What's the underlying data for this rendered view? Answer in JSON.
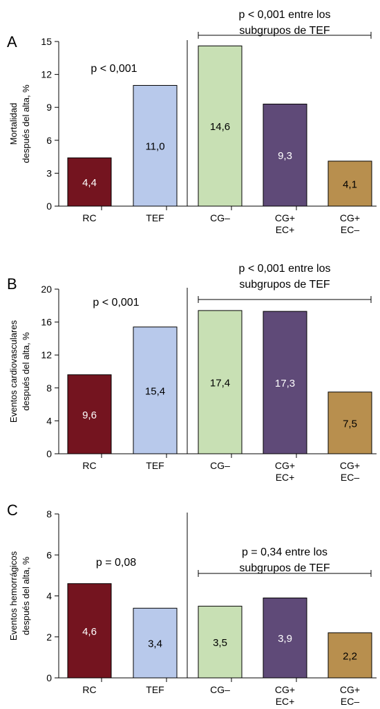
{
  "colors": {
    "RC": "#74141f",
    "TEF": "#b8c9eb",
    "CG–": "#c8e0b4",
    "CG+ EC+": "#5f4a78",
    "CG+ EC–": "#b88f4e",
    "axis": "#000000"
  },
  "chart_data": [
    {
      "type": "bar",
      "panel_label": "A",
      "categories": [
        "RC",
        "TEF",
        "CG–",
        "CG+ EC+",
        "CG+ EC–"
      ],
      "category_lines": [
        [
          "RC"
        ],
        [
          "TEF"
        ],
        [
          "CG–"
        ],
        [
          "CG+",
          "EC+"
        ],
        [
          "CG+",
          "EC–"
        ]
      ],
      "values": [
        4.4,
        11.0,
        14.6,
        9.3,
        4.1
      ],
      "value_labels": [
        "4,4",
        "11,0",
        "14,6",
        "9,3",
        "4,1"
      ],
      "label_colors": [
        "#ffffff",
        "#000000",
        "#000000",
        "#ffffff",
        "#000000"
      ],
      "ylabel_lines": [
        "Mortalidad",
        "después del alta, %"
      ],
      "ylim": [
        0,
        15
      ],
      "yticks": [
        0,
        3,
        6,
        9,
        12,
        15
      ],
      "ytick_labels": [
        "0",
        "3",
        "6",
        "9",
        "12",
        "15"
      ],
      "annotation_left": "p < 0,001",
      "annotation_right_lines": [
        "p < 0,001 entre los",
        "subgrupos de TEF"
      ],
      "grid": false
    },
    {
      "type": "bar",
      "panel_label": "B",
      "categories": [
        "RC",
        "TEF",
        "CG–",
        "CG+ EC+",
        "CG+ EC–"
      ],
      "category_lines": [
        [
          "RC"
        ],
        [
          "TEF"
        ],
        [
          "CG–"
        ],
        [
          "CG+",
          "EC+"
        ],
        [
          "CG+",
          "EC–"
        ]
      ],
      "values": [
        9.6,
        15.4,
        17.4,
        17.3,
        7.5
      ],
      "value_labels": [
        "9,6",
        "15,4",
        "17,4",
        "17,3",
        "7,5"
      ],
      "label_colors": [
        "#ffffff",
        "#000000",
        "#000000",
        "#ffffff",
        "#000000"
      ],
      "ylabel_lines": [
        "Eventos cardiovasculares",
        "después del alta, %"
      ],
      "ylim": [
        0,
        20
      ],
      "yticks": [
        0,
        4,
        8,
        12,
        16,
        20
      ],
      "ytick_labels": [
        "0",
        "4",
        "8",
        "12",
        "16",
        "20"
      ],
      "annotation_left": "p < 0,001",
      "annotation_right_lines": [
        "p < 0,001 entre los",
        "subgrupos de TEF"
      ],
      "grid": false
    },
    {
      "type": "bar",
      "panel_label": "C",
      "categories": [
        "RC",
        "TEF",
        "CG–",
        "CG+ EC+",
        "CG+ EC–"
      ],
      "category_lines": [
        [
          "RC"
        ],
        [
          "TEF"
        ],
        [
          "CG–"
        ],
        [
          "CG+",
          "EC+"
        ],
        [
          "CG+",
          "EC–"
        ]
      ],
      "values": [
        4.6,
        3.4,
        3.5,
        3.9,
        2.2
      ],
      "value_labels": [
        "4,6",
        "3,4",
        "3,5",
        "3,9",
        "2,2"
      ],
      "label_colors": [
        "#ffffff",
        "#000000",
        "#000000",
        "#ffffff",
        "#000000"
      ],
      "ylabel_lines": [
        "Eventos hemorrágicos",
        "después del alta, %"
      ],
      "ylim": [
        0,
        8
      ],
      "yticks": [
        0,
        2,
        4,
        6,
        8
      ],
      "ytick_labels": [
        "0",
        "2",
        "4",
        "6",
        "8"
      ],
      "annotation_left": "p = 0,08",
      "annotation_right_lines": [
        "p = 0,34 entre los",
        "subgrupos de TEF"
      ],
      "grid": false
    }
  ]
}
